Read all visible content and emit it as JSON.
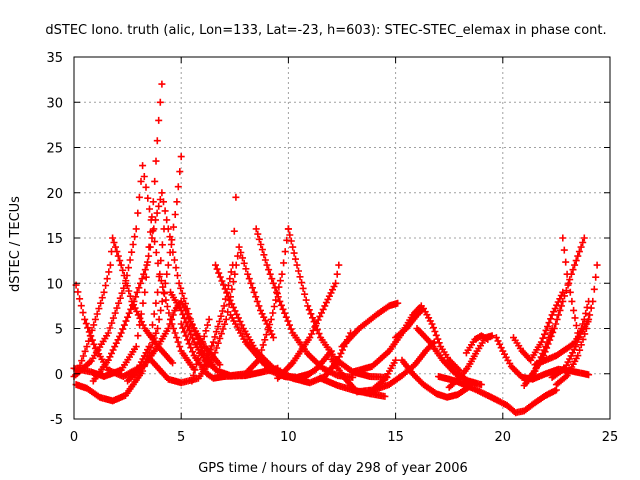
{
  "chart_data": {
    "type": "scatter",
    "title": "dSTEC Iono. truth (alic, Lon=133, Lat=-23, h=603): STEC-STEC_elemax in phase cont.",
    "xlabel": "GPS time / hours of day 298 of year 2006",
    "ylabel": "dSTEC  / TECUs",
    "xlim": [
      0,
      25
    ],
    "ylim": [
      -5,
      35
    ],
    "xticks": [
      "0",
      "5",
      "10",
      "15",
      "20",
      "25"
    ],
    "yticks": [
      "-5",
      "0",
      "5",
      "10",
      "15",
      "20",
      "25",
      "30",
      "35"
    ],
    "grid": true,
    "marker": "+",
    "color": "#ff0000",
    "series": [
      {
        "points": [
          [
            0.1,
            9.8
          ],
          [
            0.5,
            6
          ],
          [
            1.0,
            2.8
          ],
          [
            1.6,
            0.4
          ],
          [
            2.3,
            -0.3
          ],
          [
            3.0,
            0.6
          ],
          [
            3.5,
            3
          ],
          [
            3.9,
            9
          ],
          [
            4.2,
            16
          ]
        ]
      },
      {
        "points": [
          [
            0.0,
            0.6
          ],
          [
            0.8,
            0.2
          ],
          [
            1.4,
            -0.3
          ],
          [
            2.2,
            0.4
          ],
          [
            2.9,
            3
          ],
          [
            3.3,
            9
          ],
          [
            3.7,
            19
          ],
          [
            3.95,
            28
          ],
          [
            4.1,
            32
          ]
        ]
      },
      {
        "points": [
          [
            0.1,
            -1.2
          ],
          [
            0.6,
            -1.6
          ],
          [
            1.2,
            -2.6
          ],
          [
            1.8,
            -3
          ],
          [
            2.4,
            -2.4
          ],
          [
            3.2,
            0.3
          ],
          [
            3.9,
            5
          ],
          [
            4.4,
            12
          ],
          [
            4.8,
            19
          ],
          [
            5.0,
            24
          ]
        ]
      },
      {
        "points": [
          [
            0.2,
            0.4
          ],
          [
            0.6,
            3
          ],
          [
            1.0,
            6
          ],
          [
            1.4,
            9
          ],
          [
            1.7,
            12
          ],
          [
            1.8,
            15
          ],
          [
            2.2,
            12
          ],
          [
            2.7,
            8
          ],
          [
            3.3,
            5
          ],
          [
            4.0,
            2.8
          ],
          [
            4.6,
            1.2
          ]
        ]
      },
      {
        "points": [
          [
            0.0,
            -0.3
          ],
          [
            0.8,
            1.4
          ],
          [
            1.6,
            4.5
          ],
          [
            2.4,
            10
          ],
          [
            2.9,
            16
          ],
          [
            3.2,
            23
          ],
          [
            3.6,
            17
          ],
          [
            4.0,
            11
          ],
          [
            4.5,
            6
          ],
          [
            5.0,
            2.5
          ],
          [
            5.6,
            0.5
          ]
        ]
      },
      {
        "points": [
          [
            0.9,
            -0.8
          ],
          [
            1.6,
            1.5
          ],
          [
            2.2,
            4.5
          ],
          [
            2.8,
            8
          ],
          [
            3.4,
            12
          ],
          [
            3.8,
            17
          ],
          [
            4.1,
            20
          ],
          [
            4.4,
            16
          ],
          [
            4.9,
            10
          ],
          [
            5.5,
            5.5
          ],
          [
            6.0,
            2.5
          ],
          [
            6.6,
            0.5
          ]
        ]
      },
      {
        "points": [
          [
            2.5,
            -0.8
          ],
          [
            3.3,
            1
          ],
          [
            3.9,
            3
          ],
          [
            4.4,
            5
          ],
          [
            4.7,
            7
          ],
          [
            5.0,
            8
          ],
          [
            5.2,
            7
          ],
          [
            5.6,
            5
          ],
          [
            6.1,
            3
          ],
          [
            6.8,
            1
          ]
        ]
      },
      {
        "points": [
          [
            3.6,
            1.5
          ],
          [
            4.4,
            -0.6
          ],
          [
            5.0,
            -1
          ],
          [
            5.8,
            -0.5
          ],
          [
            6.5,
            1.8
          ],
          [
            7.1,
            6
          ],
          [
            7.5,
            11
          ],
          [
            7.7,
            14
          ],
          [
            8.1,
            11
          ],
          [
            8.7,
            7
          ],
          [
            9.3,
            4
          ]
        ]
      },
      {
        "points": [
          [
            4.5,
            9
          ],
          [
            5.0,
            7
          ],
          [
            5.6,
            3.5
          ],
          [
            6.1,
            1.5
          ],
          [
            6.7,
            0.3
          ],
          [
            7.3,
            -0.2
          ],
          [
            8.0,
            0
          ],
          [
            8.6,
            1.5
          ],
          [
            9.2,
            6
          ],
          [
            9.7,
            11
          ],
          [
            10.0,
            16
          ]
        ]
      },
      {
        "points": [
          [
            5.0,
            5.5
          ],
          [
            5.6,
            2
          ],
          [
            6.2,
            0
          ],
          [
            6.5,
            -0.5
          ],
          [
            7.0,
            -0.3
          ]
        ]
      },
      {
        "points": [
          [
            5.5,
            -0.8
          ],
          [
            6.0,
            3.5
          ],
          [
            6.3,
            6
          ]
        ]
      },
      {
        "points": [
          [
            6.0,
            0.5
          ],
          [
            6.5,
            3.5
          ],
          [
            7.0,
            7.5
          ],
          [
            7.4,
            12
          ],
          [
            7.55,
            19.5
          ]
        ]
      },
      {
        "points": [
          [
            6.6,
            12
          ],
          [
            7.2,
            8.5
          ],
          [
            7.9,
            5
          ],
          [
            8.5,
            2.5
          ],
          [
            9.3,
            0.6
          ],
          [
            10.2,
            -0.5
          ],
          [
            11.0,
            -1
          ],
          [
            11.7,
            -0.3
          ],
          [
            12.3,
            1.5
          ],
          [
            12.9,
            4.5
          ]
        ]
      },
      {
        "points": [
          [
            7.3,
            6.5
          ],
          [
            8.0,
            3.5
          ],
          [
            8.9,
            1
          ],
          [
            9.8,
            -0.3
          ],
          [
            10.6,
            -0.6
          ],
          [
            11.3,
            0.5
          ],
          [
            12.0,
            2.5
          ]
        ]
      },
      {
        "points": [
          [
            7.0,
            -0.3
          ],
          [
            8.0,
            -0.2
          ],
          [
            8.8,
            0.2
          ],
          [
            9.5,
            0.6
          ]
        ]
      },
      {
        "points": [
          [
            8.5,
            16
          ],
          [
            9.0,
            12
          ],
          [
            9.6,
            8
          ],
          [
            10.2,
            4.5
          ],
          [
            10.9,
            2.2
          ],
          [
            11.6,
            0.6
          ],
          [
            12.3,
            -0.2
          ],
          [
            13.0,
            -0.4
          ]
        ]
      },
      {
        "points": [
          [
            10.0,
            16
          ],
          [
            10.4,
            12
          ],
          [
            10.9,
            7.5
          ],
          [
            11.5,
            4
          ],
          [
            12.2,
            1.6
          ],
          [
            13.0,
            0.2
          ],
          [
            13.8,
            -0.3
          ],
          [
            14.6,
            -0.4
          ]
        ]
      },
      {
        "points": [
          [
            9.5,
            -0.5
          ],
          [
            10.2,
            1.2
          ],
          [
            11.0,
            4
          ],
          [
            11.7,
            7.5
          ],
          [
            12.2,
            10
          ],
          [
            12.35,
            12
          ]
        ]
      },
      {
        "points": [
          [
            9.0,
            0.5
          ],
          [
            9.7,
            -0.2
          ],
          [
            10.4,
            -0.4
          ],
          [
            11.0,
            0
          ]
        ]
      },
      {
        "points": [
          [
            11.5,
            -0.5
          ],
          [
            12.3,
            -1.3
          ],
          [
            13.0,
            -1.8
          ],
          [
            13.8,
            -2.2
          ],
          [
            14.5,
            -2.5
          ]
        ]
      },
      {
        "points": [
          [
            12.0,
            1.6
          ],
          [
            12.6,
            -0.4
          ],
          [
            13.2,
            -2
          ],
          [
            13.9,
            -1.8
          ],
          [
            14.5,
            -0.6
          ],
          [
            15.0,
            1.5
          ]
        ]
      },
      {
        "points": [
          [
            12.5,
            3
          ],
          [
            13.3,
            5
          ],
          [
            14.1,
            6.5
          ],
          [
            14.7,
            7.5
          ],
          [
            15.1,
            7.8
          ]
        ]
      },
      {
        "points": [
          [
            13.0,
            0.2
          ],
          [
            13.9,
            0.8
          ],
          [
            14.7,
            2.5
          ],
          [
            15.3,
            4.5
          ],
          [
            15.8,
            6.5
          ],
          [
            16.2,
            7.5
          ]
        ]
      },
      {
        "points": [
          [
            14.0,
            -1.8
          ],
          [
            14.7,
            -1.2
          ],
          [
            15.3,
            -0.2
          ],
          [
            15.9,
            1
          ],
          [
            16.4,
            2.5
          ],
          [
            16.8,
            3.5
          ]
        ]
      },
      {
        "points": [
          [
            15.0,
            4
          ],
          [
            15.5,
            5
          ],
          [
            16.0,
            6.5
          ],
          [
            16.3,
            7.2
          ],
          [
            16.7,
            5.5
          ],
          [
            17.1,
            3
          ],
          [
            17.5,
            1.5
          ],
          [
            18.0,
            0.3
          ]
        ]
      },
      {
        "points": [
          [
            15.3,
            1.5
          ],
          [
            15.8,
            0
          ],
          [
            16.3,
            -1.2
          ],
          [
            16.9,
            -2.2
          ],
          [
            17.4,
            -2.6
          ],
          [
            17.9,
            -2.3
          ],
          [
            18.4,
            -1.5
          ]
        ]
      },
      {
        "points": [
          [
            16.0,
            5
          ],
          [
            16.6,
            3.5
          ],
          [
            17.2,
            1.5
          ],
          [
            17.8,
            0
          ],
          [
            18.4,
            -0.8
          ],
          [
            19.0,
            -1.2
          ]
        ]
      },
      {
        "points": [
          [
            17.5,
            -1.5
          ],
          [
            18.0,
            -0.4
          ],
          [
            18.4,
            0.8
          ],
          [
            18.8,
            2.5
          ],
          [
            19.2,
            4
          ],
          [
            19.5,
            4.2
          ]
        ]
      },
      {
        "points": [
          [
            18.3,
            2.3
          ],
          [
            18.7,
            3.8
          ],
          [
            19.0,
            4.2
          ],
          [
            19.3,
            3.8
          ]
        ]
      },
      {
        "points": [
          [
            17.0,
            -0.3
          ],
          [
            17.8,
            -0.8
          ],
          [
            18.6,
            -1.6
          ],
          [
            19.3,
            -2.4
          ],
          [
            19.8,
            -3
          ],
          [
            20.2,
            -3.5
          ],
          [
            20.6,
            -4.3
          ],
          [
            21.0,
            -4.1
          ],
          [
            21.5,
            -3.2
          ],
          [
            22.0,
            -2.4
          ],
          [
            22.5,
            -1.8
          ]
        ]
      },
      {
        "points": [
          [
            19.7,
            4
          ],
          [
            20.0,
            2.5
          ],
          [
            20.4,
            0.8
          ],
          [
            20.9,
            -0.4
          ],
          [
            21.4,
            -0.6
          ],
          [
            22.0,
            0
          ],
          [
            22.6,
            0.5
          ],
          [
            23.2,
            0.3
          ],
          [
            23.8,
            0
          ],
          [
            24.0,
            -0.1
          ]
        ]
      },
      {
        "points": [
          [
            20.5,
            4
          ],
          [
            20.9,
            2.5
          ],
          [
            21.3,
            1.5
          ],
          [
            21.8,
            3.5
          ],
          [
            22.3,
            6.5
          ],
          [
            22.8,
            9
          ]
        ]
      },
      {
        "points": [
          [
            21.4,
            0
          ],
          [
            21.9,
            2
          ],
          [
            22.4,
            5
          ],
          [
            22.8,
            8
          ],
          [
            23.2,
            11
          ],
          [
            23.5,
            13
          ],
          [
            23.8,
            15
          ]
        ]
      },
      {
        "points": [
          [
            21.0,
            -1.3
          ],
          [
            21.5,
            0.3
          ],
          [
            22.0,
            3
          ],
          [
            22.3,
            5
          ]
        ]
      },
      {
        "points": [
          [
            21.5,
            1
          ],
          [
            22.5,
            2
          ],
          [
            23.3,
            3.3
          ],
          [
            23.9,
            5.5
          ],
          [
            24.0,
            6
          ]
        ]
      },
      {
        "points": [
          [
            22.3,
            -0.4
          ],
          [
            22.9,
            0.6
          ],
          [
            23.4,
            3
          ],
          [
            23.8,
            6
          ],
          [
            24.0,
            8
          ]
        ]
      },
      {
        "points": [
          [
            22.5,
            -1.2
          ],
          [
            23.0,
            -0.2
          ],
          [
            23.5,
            2
          ],
          [
            23.9,
            5
          ],
          [
            24.2,
            8
          ],
          [
            24.4,
            12
          ]
        ]
      },
      {
        "points": [
          [
            22.8,
            15
          ],
          [
            23.0,
            11
          ],
          [
            23.3,
            7
          ],
          [
            23.5,
            4.5
          ]
        ]
      }
    ]
  }
}
